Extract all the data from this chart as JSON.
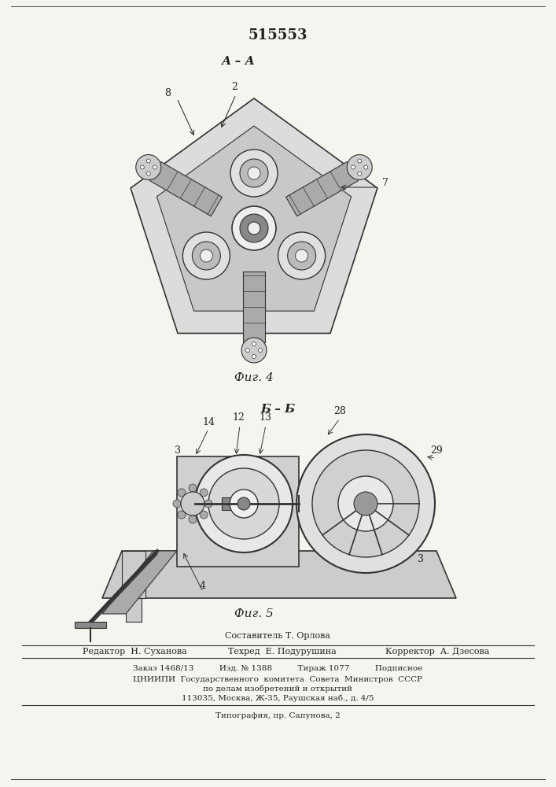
{
  "patent_number": "515553",
  "fig4_label": "А – А",
  "fig4_caption": "Фиг. 4",
  "fig5_label": "Б – Б",
  "fig5_caption": "Фиг. 5",
  "footer_compiler": "Составитель Т. Орлова",
  "footer_editor": "Редактор  Н. Суханова",
  "footer_techred": "Техред  Е. Подурушина",
  "footer_corrector": "Корректор  А. Дзесова",
  "footer_line1": "Заказ 1468/13          Изд. № 1388          Тираж 1077          Подписное",
  "footer_line2": "ЦНИИПИ  Государственного  комитета  Совета  Министров  СССР",
  "footer_line3": "по делам изобретений и открытий",
  "footer_line4": "113035, Москва, Ж-35, Раушская наб., д. 4/5",
  "footer_line5": "Типография, пр. Сапунова, 2",
  "bg_color": "#f5f5f0",
  "line_color": "#333333",
  "text_color": "#222222"
}
